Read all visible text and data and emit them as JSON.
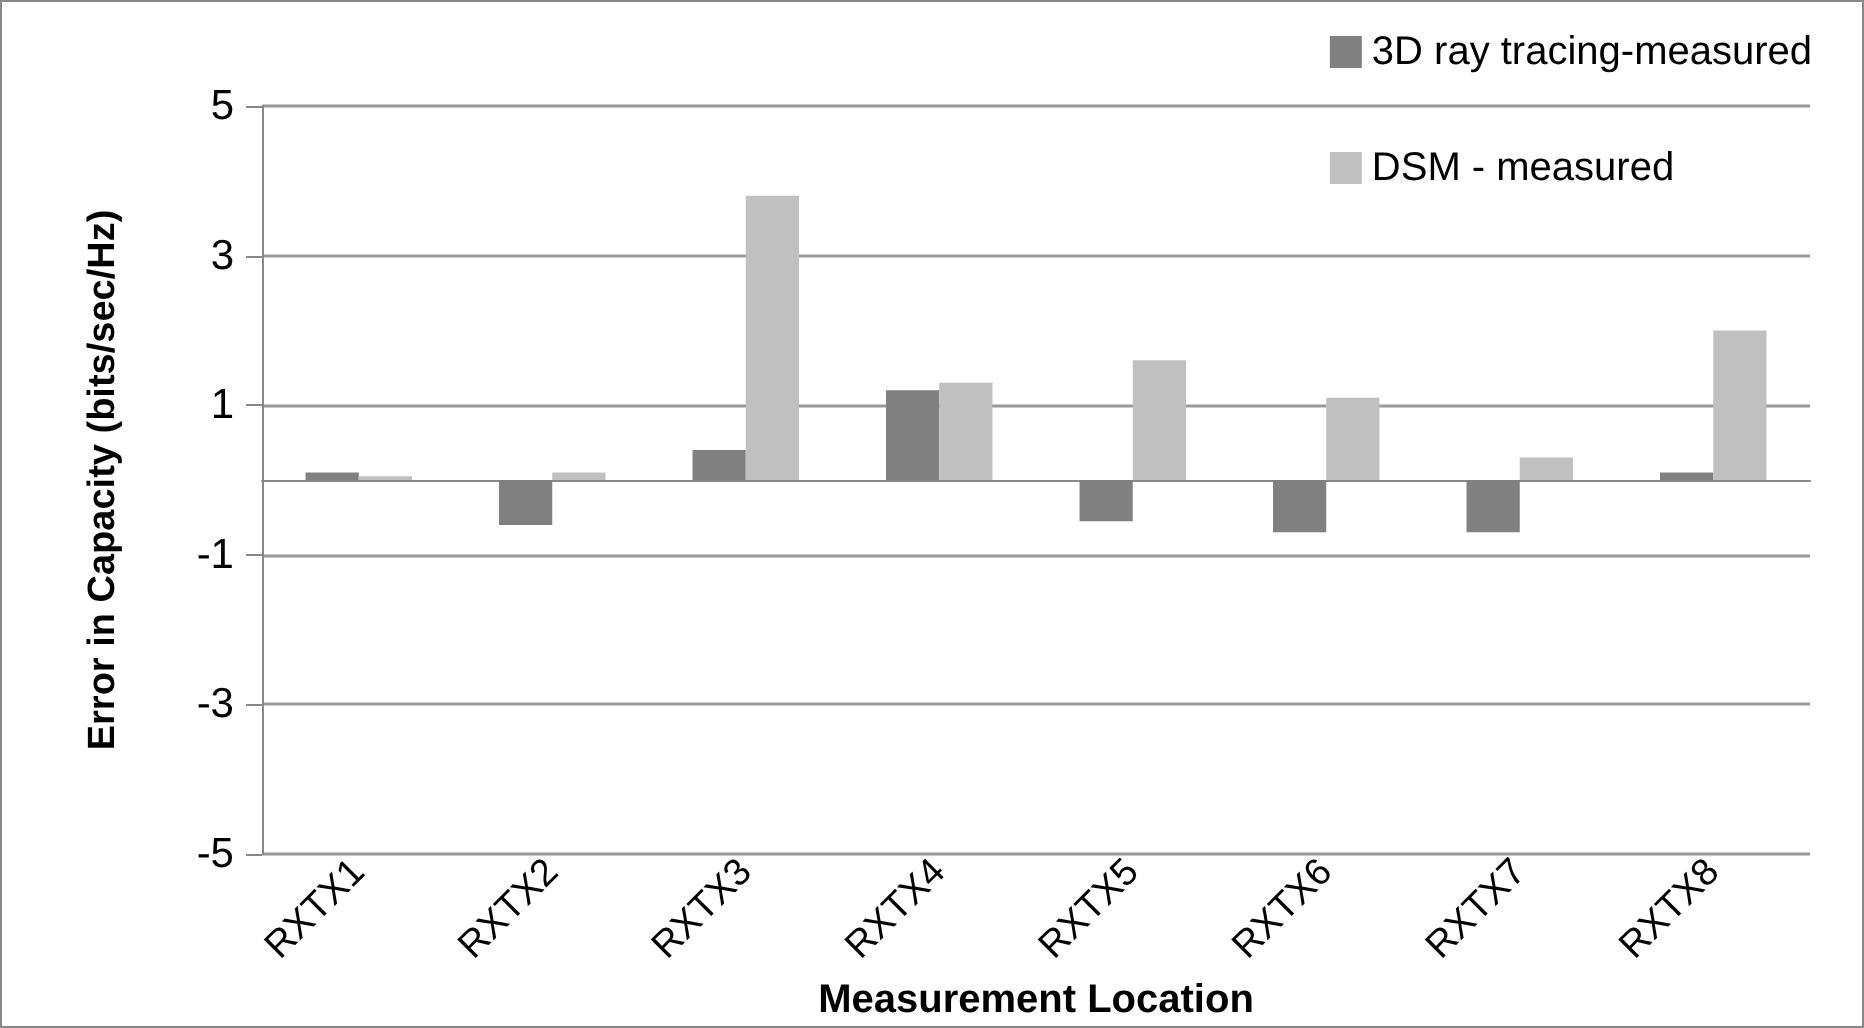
{
  "chart_data": {
    "type": "bar",
    "xlabel": "Measurement Location",
    "ylabel": "Error in Capacity (bits/sec/Hz)",
    "categories": [
      "RXTX1",
      "RXTX2",
      "RXTX3",
      "RXTX4",
      "RXTX5",
      "RXTX6",
      "RXTX7",
      "RXTX8"
    ],
    "series": [
      {
        "name": "3D ray tracing-measured",
        "color": "#808080",
        "values": [
          0.1,
          -0.6,
          0.4,
          1.2,
          -0.55,
          -0.7,
          -0.7,
          0.1
        ]
      },
      {
        "name": "DSM - measured",
        "color": "#c0c0c0",
        "values": [
          0.05,
          0.1,
          3.8,
          1.3,
          1.6,
          1.1,
          0.3,
          2.0
        ]
      }
    ],
    "ylim": [
      -5,
      5
    ],
    "yticks": [
      -5,
      -3,
      -1,
      1,
      3,
      5
    ],
    "grid": "y",
    "legend": "top right"
  }
}
